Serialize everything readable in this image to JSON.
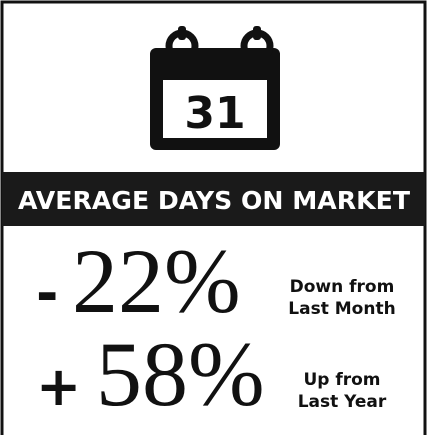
{
  "icon": {
    "number": "31"
  },
  "title": "AVERAGE DAYS ON MARKET",
  "stats": [
    {
      "sign": "-",
      "value": "22%",
      "note": [
        "Down from",
        "Last Month"
      ]
    },
    {
      "sign": "+",
      "value": "58%",
      "note": [
        "Up from",
        "Last Year"
      ]
    }
  ]
}
